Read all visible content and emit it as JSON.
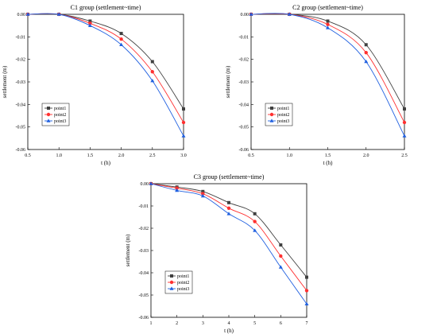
{
  "chart_data": [
    {
      "type": "line",
      "title": "C1 group (settlement~time)",
      "xlabel": "t (h)",
      "ylabel": "settlement (m)",
      "xlim": [
        0.5,
        3.0
      ],
      "ylim": [
        -0.06,
        0.0
      ],
      "xticks": [
        "0.5",
        "1.0",
        "1.5",
        "2.0",
        "2.5",
        "3.0"
      ],
      "yticks": [
        "0.00",
        "-0.01",
        "-0.02",
        "-0.03",
        "-0.04",
        "-0.05",
        "-0.06"
      ],
      "legend": "lower-left",
      "x": [
        0.5,
        1.0,
        1.5,
        2.0,
        2.5,
        3.0
      ],
      "series": [
        {
          "name": "point1",
          "color": "#404040",
          "marker": "square",
          "values": [
            0.0,
            0.0,
            -0.003,
            -0.0085,
            -0.021,
            -0.042
          ]
        },
        {
          "name": "point2",
          "color": "#ff3030",
          "marker": "circle",
          "values": [
            0.0,
            0.0,
            -0.004,
            -0.011,
            -0.0255,
            -0.048
          ]
        },
        {
          "name": "point3",
          "color": "#2060e0",
          "marker": "triangle",
          "values": [
            0.0,
            0.0,
            -0.005,
            -0.0135,
            -0.0295,
            -0.054
          ]
        }
      ]
    },
    {
      "type": "line",
      "title": "C2 group (settlement~time)",
      "xlabel": "t (h)",
      "ylabel": "settlement (m)",
      "xlim": [
        0.5,
        2.5
      ],
      "ylim": [
        -0.06,
        0.0
      ],
      "xticks": [
        "0.5",
        "1.0",
        "1.5",
        "2.0",
        "2.5"
      ],
      "yticks": [
        "0.00",
        "-0.01",
        "-0.02",
        "-0.03",
        "-0.04",
        "-0.05",
        "-0.06"
      ],
      "legend": "lower-left",
      "x": [
        0.5,
        1.0,
        1.5,
        2.0,
        2.5
      ],
      "series": [
        {
          "name": "point1",
          "color": "#404040",
          "marker": "square",
          "values": [
            0.0,
            0.0,
            -0.003,
            -0.0135,
            -0.042
          ]
        },
        {
          "name": "point2",
          "color": "#ff3030",
          "marker": "circle",
          "values": [
            0.0,
            0.0,
            -0.0045,
            -0.017,
            -0.048
          ]
        },
        {
          "name": "point3",
          "color": "#2060e0",
          "marker": "triangle",
          "values": [
            0.0,
            0.0,
            -0.006,
            -0.021,
            -0.054
          ]
        }
      ]
    },
    {
      "type": "line",
      "title": "C3 group (settlement~time)",
      "xlabel": "t (h)",
      "ylabel": "settlement (m)",
      "xlim": [
        1,
        7
      ],
      "ylim": [
        -0.06,
        0.0
      ],
      "xticks": [
        "1",
        "2",
        "3",
        "4",
        "5",
        "6",
        "7"
      ],
      "yticks": [
        "0.00",
        "-0.01",
        "-0.02",
        "-0.03",
        "-0.04",
        "-0.05",
        "-0.06"
      ],
      "legend": "lower-left",
      "x": [
        1,
        2,
        3,
        4,
        5,
        6,
        7
      ],
      "series": [
        {
          "name": "point1",
          "color": "#404040",
          "marker": "square",
          "values": [
            0.0,
            -0.0015,
            -0.0035,
            -0.0085,
            -0.0135,
            -0.0275,
            -0.042
          ]
        },
        {
          "name": "point2",
          "color": "#ff3030",
          "marker": "circle",
          "values": [
            0.0,
            -0.002,
            -0.0045,
            -0.011,
            -0.017,
            -0.0325,
            -0.048
          ]
        },
        {
          "name": "point3",
          "color": "#2060e0",
          "marker": "triangle",
          "values": [
            0.0,
            -0.003,
            -0.0055,
            -0.0135,
            -0.021,
            -0.0375,
            -0.054
          ]
        }
      ]
    }
  ]
}
